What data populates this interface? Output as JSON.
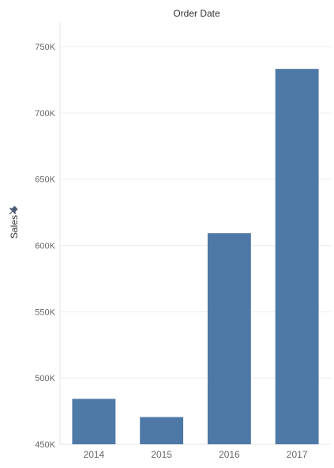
{
  "chart_data": {
    "type": "bar",
    "title": "Order Date",
    "xlabel": "",
    "ylabel": "Sales",
    "ylabel_icon": "pin-icon",
    "categories": [
      "2014",
      "2015",
      "2016",
      "2017"
    ],
    "values": [
      484247,
      470533,
      609206,
      733215
    ],
    "ylim": [
      450000,
      770000
    ],
    "yticks": [
      450000,
      500000,
      550000,
      600000,
      650000,
      700000,
      750000
    ],
    "ytick_labels": [
      "450K",
      "500K",
      "550K",
      "600K",
      "650K",
      "700K",
      "750K"
    ],
    "grid": true,
    "bar_color": "#4e79a7"
  }
}
